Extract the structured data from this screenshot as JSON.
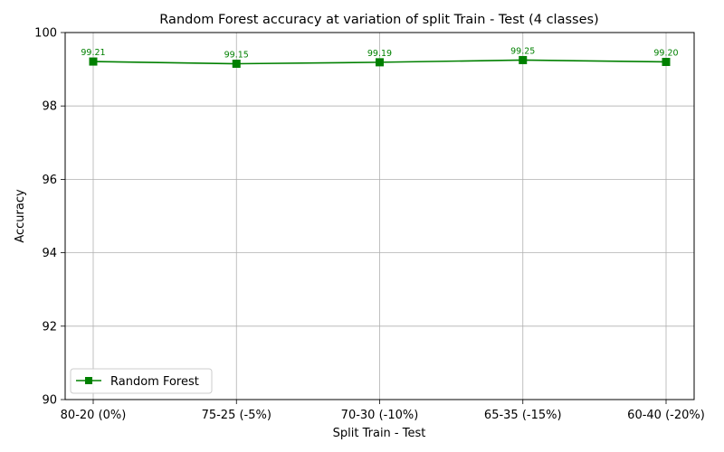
{
  "chart_data": {
    "type": "line",
    "title": "Random Forest accuracy at variation of split Train - Test (4 classes)",
    "xlabel": "Split Train - Test",
    "ylabel": "Accuracy",
    "categories": [
      "80-20 (0%)",
      "75-25 (-5%)",
      "70-30 (-10%)",
      "65-35 (-15%)",
      "60-40 (-20%)"
    ],
    "series": [
      {
        "name": "Random Forest",
        "values": [
          99.21,
          99.15,
          99.19,
          99.25,
          99.2
        ],
        "labels": [
          "99.21",
          "99.15",
          "99.19",
          "99.25",
          "99.20"
        ],
        "color": "#008000",
        "marker": "square"
      }
    ],
    "ylim": [
      90,
      100
    ],
    "yticks": [
      "90",
      "92",
      "94",
      "96",
      "98",
      "100"
    ],
    "grid": true,
    "legend": "lower-left"
  }
}
